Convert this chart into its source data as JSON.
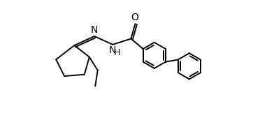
{
  "background_color": "#ffffff",
  "line_color": "#000000",
  "line_width": 1.4,
  "text_color": "#000000",
  "fig_width": 3.82,
  "fig_height": 1.92,
  "dpi": 100,
  "xlim": [
    0,
    11
  ],
  "ylim": [
    1.5,
    9.5
  ]
}
